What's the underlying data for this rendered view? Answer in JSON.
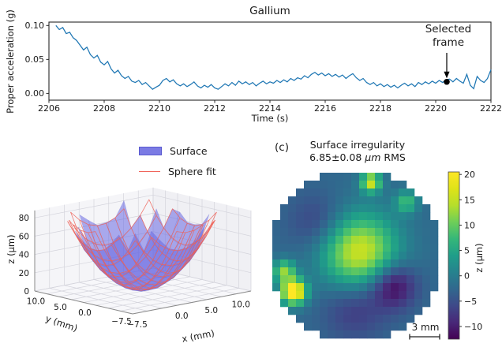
{
  "figure_bg": "#ffffff",
  "chart_data": [
    {
      "id": "acceleration_timeseries",
      "type": "line",
      "title": "Gallium",
      "xlabel": "Time (s)",
      "ylabel": "Proper acceleration (g)",
      "xlim": [
        2206,
        2222
      ],
      "ylim": [
        -0.01,
        0.105
      ],
      "xticks": [
        2206,
        2208,
        2210,
        2212,
        2214,
        2216,
        2218,
        2220,
        2222
      ],
      "ytick_labels": [
        "0.00",
        "0.05",
        "0.10"
      ],
      "ytick_vals": [
        0.0,
        0.05,
        0.1
      ],
      "line_color": "#1f77b4",
      "spine_color": "#262626",
      "grid": false,
      "annotation": {
        "line1": "Selected",
        "line2": "frame",
        "t": 2220.4,
        "value": 0.017,
        "marker_color": "#000000"
      },
      "t0": 2206.25,
      "dt": 0.125,
      "values": [
        0.1,
        0.094,
        0.097,
        0.088,
        0.09,
        0.082,
        0.078,
        0.071,
        0.064,
        0.068,
        0.057,
        0.052,
        0.056,
        0.046,
        0.042,
        0.047,
        0.036,
        0.03,
        0.034,
        0.026,
        0.022,
        0.025,
        0.018,
        0.016,
        0.019,
        0.013,
        0.016,
        0.011,
        0.006,
        0.009,
        0.012,
        0.019,
        0.022,
        0.017,
        0.02,
        0.014,
        0.011,
        0.014,
        0.01,
        0.013,
        0.017,
        0.011,
        0.008,
        0.012,
        0.009,
        0.013,
        0.008,
        0.006,
        0.01,
        0.014,
        0.011,
        0.016,
        0.012,
        0.018,
        0.014,
        0.017,
        0.013,
        0.016,
        0.011,
        0.015,
        0.018,
        0.014,
        0.017,
        0.015,
        0.019,
        0.016,
        0.02,
        0.017,
        0.022,
        0.019,
        0.023,
        0.021,
        0.026,
        0.023,
        0.028,
        0.031,
        0.027,
        0.03,
        0.026,
        0.029,
        0.025,
        0.028,
        0.024,
        0.027,
        0.022,
        0.026,
        0.029,
        0.023,
        0.019,
        0.022,
        0.016,
        0.013,
        0.016,
        0.011,
        0.014,
        0.01,
        0.013,
        0.009,
        0.012,
        0.008,
        0.012,
        0.015,
        0.011,
        0.014,
        0.01,
        0.016,
        0.013,
        0.017,
        0.014,
        0.018,
        0.015,
        0.019,
        0.016,
        0.02,
        0.021,
        0.017,
        0.022,
        0.018,
        0.015,
        0.028,
        0.012,
        0.007,
        0.025,
        0.019,
        0.016,
        0.022,
        0.035
      ]
    },
    {
      "id": "droplet_surface_3d",
      "type": "surface_3d",
      "legend": [
        {
          "label": "Surface",
          "color": "#7b7be4",
          "kind": "patch"
        },
        {
          "label": "Sphere fit",
          "color": "#f0645a",
          "kind": "line"
        }
      ],
      "xlabel": "x (mm)",
      "ylabel": "y (mm)",
      "zlabel": "z (μm)",
      "xtick_labels": [
        "−7.5",
        "0.0",
        "5.0",
        "10.0"
      ],
      "xtick_vals": [
        -7.5,
        0,
        5,
        10
      ],
      "ytick_labels": [
        "10.0",
        "5.0",
        "0.0",
        "−7.5"
      ],
      "ytick_vals": [
        10,
        5,
        0,
        -7.5
      ],
      "ztick_labels": [
        "0",
        "20",
        "40",
        "60",
        "80"
      ],
      "ztick_vals": [
        0,
        20,
        40,
        60,
        80
      ],
      "xlim": [
        -7.5,
        12.5
      ],
      "ylim": [
        -7.5,
        12.5
      ],
      "zlim": [
        0,
        90
      ],
      "surface_color": "#6868e2",
      "fit_color": "#ef6157",
      "bowl": {
        "center_mm": [
          1.5,
          1.5
        ],
        "radius_mm": 9.4,
        "bottom_um": 3,
        "rim_um": 76
      }
    },
    {
      "id": "surface_irregularity_map",
      "type": "heatmap",
      "panel_label": "(c)",
      "title_line1": "Surface irregularity",
      "title_value": "6.85±0.08",
      "title_unit": "μm",
      "title_suffix": " RMS",
      "scalebar_label": "3 mm",
      "grid_n": 21,
      "disk_radius_cells": 10.9,
      "base_um": -2.5,
      "blobs_cell_sigma_amp": [
        [
          0.5,
          0.5,
          3.4,
          18.5
        ],
        [
          4.8,
          -3.8,
          2.0,
          -10.5
        ],
        [
          -4.5,
          4.0,
          2.6,
          -5.0
        ],
        [
          0.0,
          -6.5,
          2.8,
          -5.5
        ],
        [
          -7.8,
          -4.6,
          1.1,
          26.0
        ],
        [
          -9.0,
          -2.0,
          1.0,
          14.0
        ],
        [
          2.0,
          9.3,
          0.9,
          18.0
        ],
        [
          6.5,
          6.8,
          1.0,
          10.0
        ]
      ],
      "colorbar": {
        "ticks": [
          "20",
          "15",
          "10",
          "5",
          "0",
          "−5",
          "−10"
        ],
        "tick_vals": [
          20,
          15,
          10,
          5,
          0,
          -5,
          -10
        ],
        "label": "z (μm)",
        "clim": [
          -12.5,
          20.5
        ]
      },
      "colormap_viridis": [
        [
          0.0,
          "#440154"
        ],
        [
          0.1,
          "#482878"
        ],
        [
          0.2,
          "#3e4989"
        ],
        [
          0.3,
          "#31688e"
        ],
        [
          0.4,
          "#26828e"
        ],
        [
          0.5,
          "#1f9e89"
        ],
        [
          0.6,
          "#35b779"
        ],
        [
          0.7,
          "#6ece58"
        ],
        [
          0.8,
          "#b5de2b"
        ],
        [
          0.9,
          "#dfe318"
        ],
        [
          1.0,
          "#fde725"
        ]
      ]
    }
  ]
}
